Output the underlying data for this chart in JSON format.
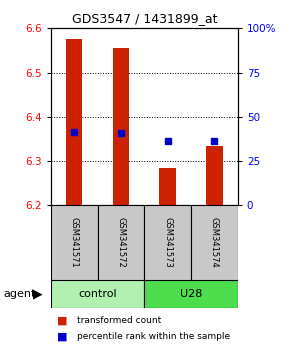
{
  "title": "GDS3547 / 1431899_at",
  "samples": [
    "GSM341571",
    "GSM341572",
    "GSM341573",
    "GSM341574"
  ],
  "bar_bottoms": [
    6.2,
    6.2,
    6.2,
    6.2
  ],
  "bar_tops": [
    6.575,
    6.555,
    6.285,
    6.335
  ],
  "percentile_values": [
    6.365,
    6.363,
    6.345,
    6.345
  ],
  "ylim_left": [
    6.2,
    6.6
  ],
  "ylim_right": [
    0,
    100
  ],
  "yticks_left": [
    6.2,
    6.3,
    6.4,
    6.5,
    6.6
  ],
  "yticks_right": [
    0,
    25,
    50,
    75,
    100
  ],
  "ytick_right_labels": [
    "0",
    "25",
    "50",
    "75",
    "100%"
  ],
  "grid_lines": [
    6.3,
    6.4,
    6.5
  ],
  "groups": [
    {
      "label": "control",
      "indices": [
        0,
        1
      ],
      "color": "#b2f0b2"
    },
    {
      "label": "U28",
      "indices": [
        2,
        3
      ],
      "color": "#4ddd4d"
    }
  ],
  "group_row_label": "agent",
  "bar_color": "#cc2200",
  "percentile_color": "#0000cc",
  "sample_box_color": "#c8c8c8",
  "legend_items": [
    {
      "label": "transformed count",
      "color": "#cc2200"
    },
    {
      "label": "percentile rank within the sample",
      "color": "#0000cc"
    }
  ],
  "title_fontsize": 9,
  "tick_fontsize": 7.5,
  "sample_fontsize": 6,
  "group_fontsize": 8,
  "legend_fontsize": 6.5
}
